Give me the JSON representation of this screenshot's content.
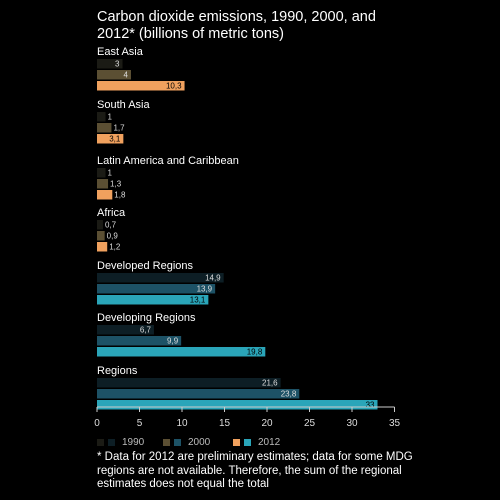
{
  "chart_data": {
    "type": "bar",
    "orientation": "horizontal",
    "title": "Carbon dioxide emissions, 1990, 2000, and 2012* (billions of metric tons)",
    "xlim": [
      0,
      35
    ],
    "x_ticks": [
      "0",
      "5",
      "10",
      "15",
      "20",
      "25",
      "30",
      "35"
    ],
    "groups": [
      {
        "name": "East Asia",
        "values": [
          3,
          4,
          10.3
        ],
        "labels": [
          "3",
          "4",
          "10,3"
        ],
        "palette": "regional"
      },
      {
        "name": "South Asia",
        "values": [
          1,
          1.7,
          3.1
        ],
        "labels": [
          "1",
          "1,7",
          "3,1"
        ],
        "palette": "regional"
      },
      {
        "name": "Latin America and Caribbean",
        "values": [
          1,
          1.3,
          1.8
        ],
        "labels": [
          "1",
          "1,3",
          "1,8"
        ],
        "palette": "regional"
      },
      {
        "name": "Africa",
        "values": [
          0.7,
          0.9,
          1.2
        ],
        "labels": [
          "0,7",
          "0,9",
          "1,2"
        ],
        "palette": "regional"
      },
      {
        "name": "Developed Regions",
        "values": [
          14.9,
          13.9,
          13.1
        ],
        "labels": [
          "14,9",
          "13,9",
          "13,1"
        ],
        "palette": "aggregate"
      },
      {
        "name": "Developing Regions",
        "values": [
          6.7,
          9.9,
          19.8
        ],
        "labels": [
          "6,7",
          "9,9",
          "19,8"
        ],
        "palette": "aggregate"
      },
      {
        "name": "Regions",
        "values": [
          21.6,
          23.8,
          33
        ],
        "labels": [
          "21,6",
          "23,8",
          "33"
        ],
        "palette": "aggregate"
      }
    ],
    "years": [
      "1990",
      "2000",
      "2012"
    ],
    "colors": {
      "regional": [
        "#1b1b15",
        "#5b4f33",
        "#f0a15e"
      ],
      "aggregate": [
        "#0d1e25",
        "#1d5266",
        "#2aa5b9"
      ]
    },
    "legend": [
      {
        "label": "1990",
        "colors": [
          "#1b1b15",
          "#0d1e25"
        ]
      },
      {
        "label": "2000",
        "colors": [
          "#5b4f33",
          "#1d5266"
        ]
      },
      {
        "label": "2012",
        "colors": [
          "#f0a15e",
          "#2aa5b9"
        ]
      }
    ],
    "legend_position": "bottom"
  },
  "footnote": "* Data for 2012 are preliminary estimates; data for some MDG regions are not available. Therefore, the sum of the regional estimates does not equal the total"
}
